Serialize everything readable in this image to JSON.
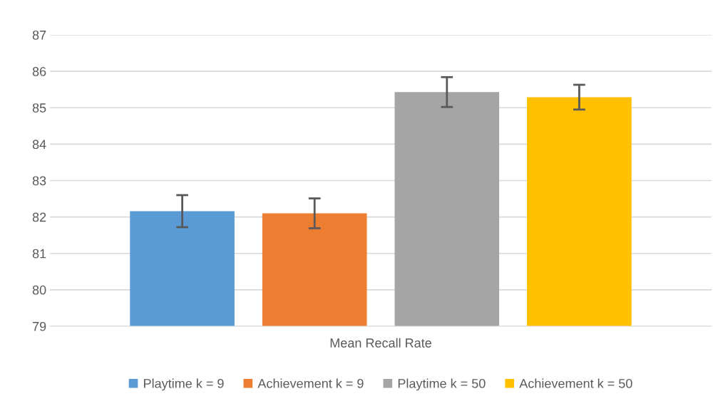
{
  "chart_data": {
    "type": "bar",
    "categories": [
      "Mean Recall Rate"
    ],
    "series": [
      {
        "name": "Playtime k = 9",
        "color": "#5b9bd5",
        "values": [
          82.16
        ],
        "errors": [
          0.44
        ]
      },
      {
        "name": "Achievement k = 9",
        "color": "#ed7d31",
        "values": [
          82.1
        ],
        "errors": [
          0.41
        ]
      },
      {
        "name": "Playtime k = 50",
        "color": "#a5a5a5",
        "values": [
          85.43
        ],
        "errors": [
          0.41
        ]
      },
      {
        "name": "Achievement k = 50",
        "color": "#ffc000",
        "values": [
          85.29
        ],
        "errors": [
          0.34
        ]
      }
    ],
    "ylim": [
      79,
      87
    ],
    "yticks": [
      79,
      80,
      81,
      82,
      83,
      84,
      85,
      86,
      87
    ],
    "grid": "y",
    "legend": "bottom"
  }
}
